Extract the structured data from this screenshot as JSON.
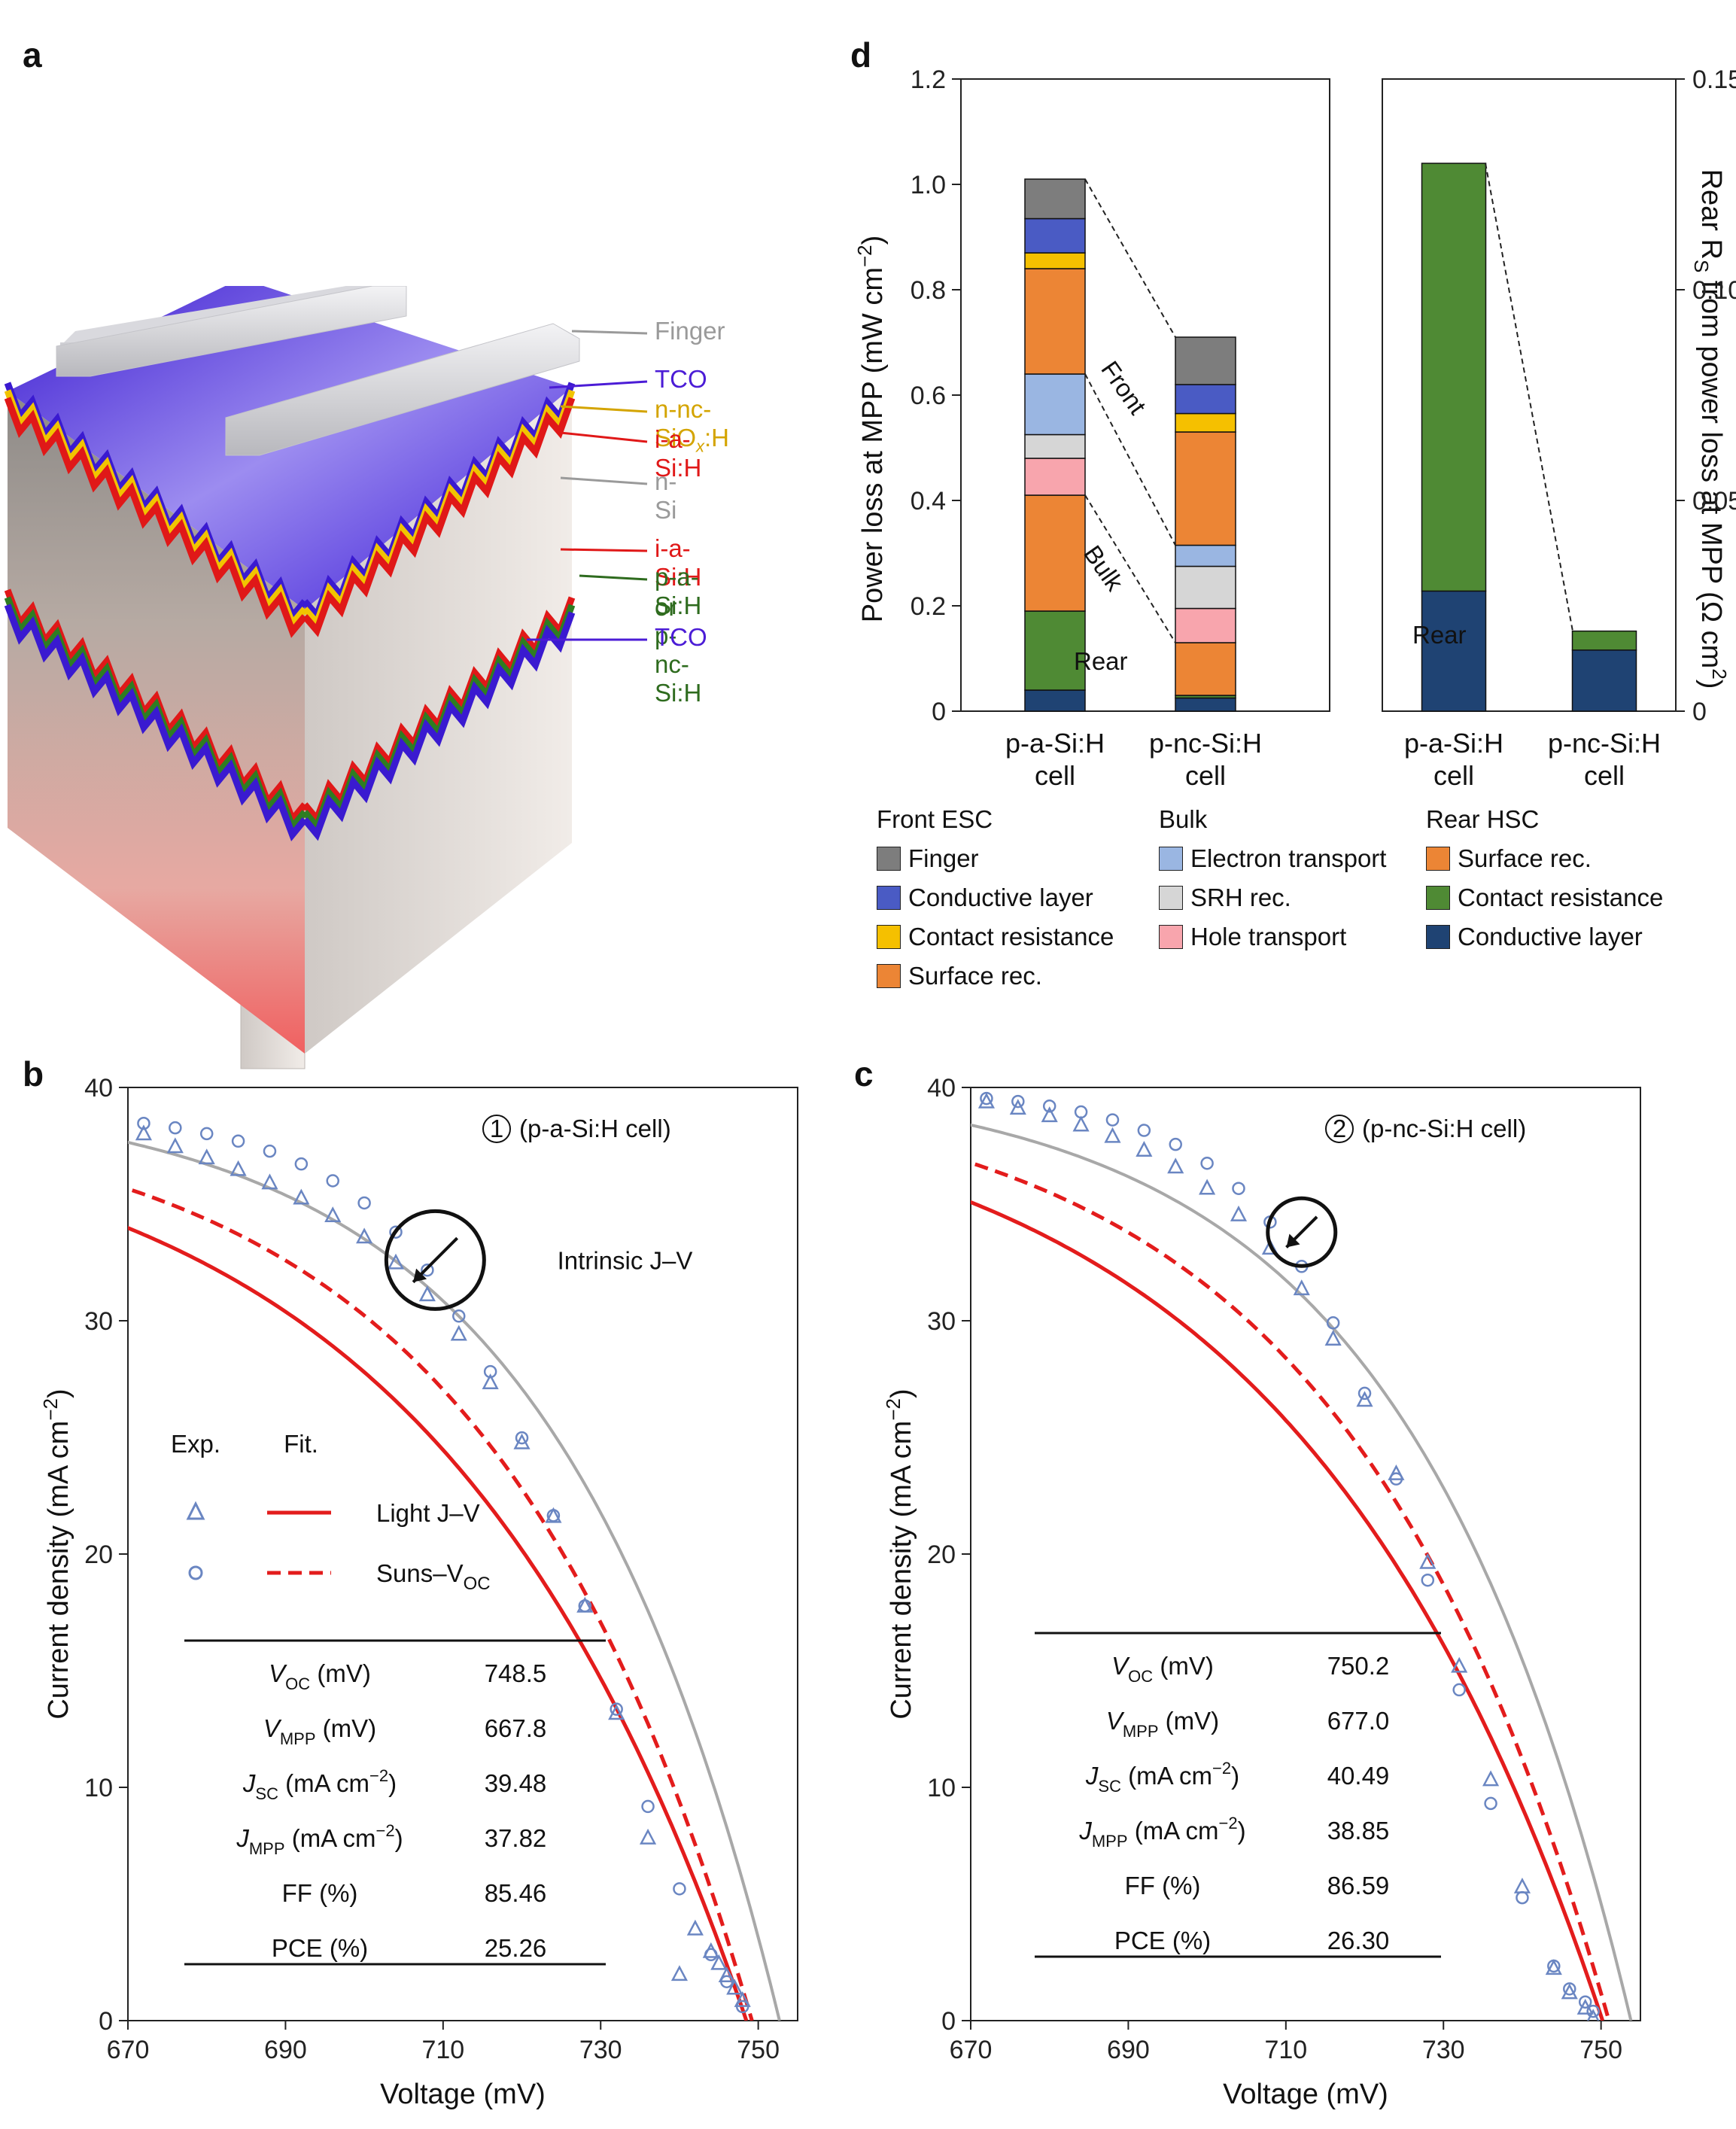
{
  "panels": {
    "a": "a",
    "b": "b",
    "c": "c",
    "d": "d"
  },
  "panel_a": {
    "layers": [
      {
        "label": "Finger",
        "color": "#9a9a9a"
      },
      {
        "label": "TCO",
        "color": "#4b1cd6"
      },
      {
        "label": "n-nc-SiO",
        "sub": "x",
        "label_end": ":H",
        "color": "#d4a400"
      },
      {
        "label": "i-a-Si:H",
        "color": "#e01818"
      },
      {
        "label": "n-Si",
        "color": "#9a9a9a"
      },
      {
        "label": "i-a-Si:H",
        "color": "#e01818"
      },
      {
        "label": "p-a-Si:H",
        "color": "#2e6b1e"
      },
      {
        "label": "or p-nc-Si:H",
        "color": "#2e6b1e"
      },
      {
        "label": "TCO",
        "color": "#4b1cd6"
      }
    ]
  },
  "panel_d": {
    "left_axis_label": "Power loss at MPP (mW cm",
    "left_axis_sup": "−2",
    "left_axis_end": ")",
    "right_axis_label_pre": "Rear R",
    "right_axis_label_sub": "S",
    "right_axis_label_post": " from power loss at MPP (Ω cm",
    "right_axis_sup": "2",
    "right_axis_end": ")",
    "left_ticks": [
      "0",
      "0.2",
      "0.4",
      "0.6",
      "0.8",
      "1.0",
      "1.2"
    ],
    "right_ticks": [
      "0",
      "0.05",
      "0.10",
      "0.15"
    ],
    "annotations": {
      "front": "Front",
      "bulk": "Bulk",
      "rear_left": "Rear",
      "rear_right": "Rear"
    },
    "categories_left": [
      [
        "p-a-Si:H",
        "cell"
      ],
      [
        "p-nc-Si:H",
        "cell"
      ]
    ],
    "categories_right": [
      [
        "p-a-Si:H",
        "cell"
      ],
      [
        "p-nc-Si:H",
        "cell"
      ]
    ],
    "legend": {
      "groups": [
        {
          "title": "Front ESC",
          "items": [
            {
              "label": "Finger",
              "color": "#7d7d7d"
            },
            {
              "label": "Conductive layer",
              "color": "#4a5bc4"
            },
            {
              "label": "Contact resistance",
              "color": "#f5c000"
            },
            {
              "label": "Surface rec.",
              "color": "#ec8535"
            }
          ]
        },
        {
          "title": "Bulk",
          "items": [
            {
              "label": "Electron transport",
              "color": "#9ab6e2"
            },
            {
              "label": "SRH rec.",
              "color": "#d6d6d6"
            },
            {
              "label": "Hole transport",
              "color": "#f8a5ad"
            }
          ]
        },
        {
          "title": "Rear HSC",
          "items": [
            {
              "label": "Surface rec.",
              "color": "#ec8535"
            },
            {
              "label": "Contact resistance",
              "color": "#4f8a34"
            },
            {
              "label": "Conductive layer",
              "color": "#1f4373"
            }
          ]
        }
      ]
    }
  },
  "panel_b": {
    "circle_label": "1",
    "title": "(p-a-Si:H cell)",
    "intrinsic_label": "Intrinsic J–V",
    "legend": {
      "exp": "Exp.",
      "fit": "Fit.",
      "light": "Light J–V",
      "suns_pre": "Suns–V",
      "suns_sub": "OC"
    },
    "table": [
      {
        "param": "V",
        "sub": "OC",
        "unit": " (mV)",
        "value": "748.5"
      },
      {
        "param": "V",
        "sub": "MPP",
        "unit": " (mV)",
        "value": "667.8"
      },
      {
        "param": "J",
        "sub": "SC",
        "unit": " (mA cm",
        "sup": "−2",
        "unit_end": ")",
        "value": "39.48"
      },
      {
        "param": "J",
        "sub": "MPP",
        "unit": " (mA cm",
        "sup": "−2",
        "unit_end": ")",
        "value": "37.82"
      },
      {
        "param": "FF (%)",
        "value": "85.46"
      },
      {
        "param": "PCE (%)",
        "value": "25.26"
      }
    ]
  },
  "panel_c": {
    "circle_label": "2",
    "title": "(p-nc-Si:H cell)",
    "table": [
      {
        "param": "V",
        "sub": "OC",
        "unit": " (mV)",
        "value": "750.2"
      },
      {
        "param": "V",
        "sub": "MPP",
        "unit": " (mV)",
        "value": "677.0"
      },
      {
        "param": "J",
        "sub": "SC",
        "unit": " (mA cm",
        "sup": "−2",
        "unit_end": ")",
        "value": "40.49"
      },
      {
        "param": "J",
        "sub": "MPP",
        "unit": " (mA cm",
        "sup": "−2",
        "unit_end": ")",
        "value": "38.85"
      },
      {
        "param": "FF (%)",
        "value": "86.59"
      },
      {
        "param": "PCE (%)",
        "value": "26.30"
      }
    ]
  },
  "jv_axes": {
    "xlabel": "Voltage (mV)",
    "ylabel": "Current density (mA cm",
    "ylabel_sup": "−2",
    "ylabel_end": ")",
    "xticks": [
      "670",
      "690",
      "710",
      "730",
      "750"
    ],
    "yticks": [
      "0",
      "10",
      "20",
      "30",
      "40"
    ]
  },
  "chart_data": [
    {
      "id": "d",
      "type": "bar",
      "stacked": true,
      "title": "",
      "ylabel": "Power loss at MPP (mW cm−2)",
      "ylim": [
        0,
        1.2
      ],
      "y2label": "Rear RS from power loss at MPP (Ω cm2)",
      "y2lim": [
        0,
        0.15
      ],
      "subplots": [
        {
          "categories": [
            "p-a-Si:H cell",
            "p-nc-Si:H cell"
          ],
          "axis": "left",
          "series": [
            {
              "name": "Rear Conductive layer",
              "color": "#1f4373",
              "values": [
                0.04,
                0.025
              ]
            },
            {
              "name": "Rear Contact resistance",
              "color": "#4f8a34",
              "values": [
                0.15,
                0.005
              ]
            },
            {
              "name": "Rear Surface rec.",
              "color": "#ec8535",
              "values": [
                0.22,
                0.1
              ]
            },
            {
              "name": "Hole transport",
              "color": "#f8a5ad",
              "values": [
                0.07,
                0.065
              ]
            },
            {
              "name": "SRH rec.",
              "color": "#d6d6d6",
              "values": [
                0.045,
                0.08
              ]
            },
            {
              "name": "Electron transport",
              "color": "#9ab6e2",
              "values": [
                0.115,
                0.04
              ]
            },
            {
              "name": "Front Surface rec.",
              "color": "#ec8535",
              "values": [
                0.2,
                0.215
              ]
            },
            {
              "name": "Front Contact resistance",
              "color": "#f5c000",
              "values": [
                0.03,
                0.035
              ]
            },
            {
              "name": "Front Conductive layer",
              "color": "#4a5bc4",
              "values": [
                0.065,
                0.055
              ]
            },
            {
              "name": "Finger",
              "color": "#7d7d7d",
              "values": [
                0.075,
                0.09
              ]
            }
          ]
        },
        {
          "categories": [
            "p-a-Si:H cell",
            "p-nc-Si:H cell"
          ],
          "axis": "right",
          "series": [
            {
              "name": "Rear Conductive layer",
              "color": "#1f4373",
              "values": [
                0.0285,
                0.0145
              ]
            },
            {
              "name": "Rear Contact resistance",
              "color": "#4f8a34",
              "values": [
                0.1015,
                0.0045
              ]
            }
          ]
        }
      ]
    },
    {
      "id": "b",
      "type": "line",
      "title": "(p-a-Si:H cell)",
      "xlabel": "Voltage (mV)",
      "ylabel": "Current density (mA cm−2)",
      "xlim": [
        670,
        755
      ],
      "ylim": [
        0,
        40
      ],
      "params": {
        "voc": 748.5,
        "jsc": 39.48,
        "intrinsic_voc": 752.7,
        "intrinsic_jsc": 39.9,
        "suns_voc": 749.2,
        "suns_jsc": 39.48
      },
      "series": [
        {
          "name": "Light J–V (Exp.)",
          "marker": "triangle",
          "color": "#6a86c2",
          "x": [
            672,
            676,
            680,
            684,
            688,
            692,
            696,
            700,
            704,
            708,
            712,
            716,
            720,
            724,
            728,
            732,
            736,
            740,
            742,
            744,
            745,
            746,
            747,
            748
          ],
          "y": [
            38.0,
            37.45,
            36.97,
            36.47,
            35.9,
            35.25,
            34.49,
            33.58,
            32.47,
            31.1,
            29.41,
            27.33,
            24.76,
            21.6,
            17.76,
            13.16,
            7.82,
            1.97,
            3.92,
            2.95,
            2.44,
            1.91,
            1.38,
            0.85
          ]
        },
        {
          "name": "Suns–VOC (Exp.)",
          "marker": "circle",
          "color": "#6a86c2",
          "x": [
            672,
            676,
            680,
            684,
            688,
            692,
            696,
            700,
            704,
            708,
            712,
            716,
            720,
            724,
            728,
            732,
            736,
            740,
            744,
            746,
            748
          ],
          "y": [
            38.46,
            38.27,
            38.02,
            37.7,
            37.27,
            36.72,
            36.0,
            35.05,
            33.8,
            32.17,
            30.2,
            27.82,
            24.98,
            21.65,
            17.78,
            13.35,
            9.18,
            5.65,
            2.83,
            1.67,
            0.6
          ]
        },
        {
          "name": "Light J–V (Fit.)",
          "style": "solid",
          "color": "#e31c1c"
        },
        {
          "name": "Suns–VOC (Fit.)",
          "style": "dashed",
          "color": "#e31c1c"
        },
        {
          "name": "Intrinsic J–V",
          "style": "solid",
          "color": "#a8a8a8"
        }
      ]
    },
    {
      "id": "c",
      "type": "line",
      "title": "(p-nc-Si:H cell)",
      "xlabel": "Voltage (mV)",
      "ylabel": "Current density (mA cm−2)",
      "xlim": [
        670,
        755
      ],
      "ylim": [
        0,
        40
      ],
      "params": {
        "voc": 750.2,
        "jsc": 40.49,
        "intrinsic_voc": 753.8,
        "intrinsic_jsc": 40.6,
        "suns_voc": 751.0,
        "suns_jsc": 40.49
      },
      "series": [
        {
          "name": "Light J–V (Exp.)",
          "marker": "triangle",
          "color": "#6a86c2",
          "x": [
            672,
            676,
            680,
            684,
            688,
            692,
            696,
            700,
            704,
            708,
            712,
            716,
            720,
            724,
            728,
            732,
            736,
            740,
            744,
            746,
            748,
            749
          ],
          "y": [
            39.37,
            39.1,
            38.78,
            38.38,
            37.89,
            37.3,
            36.58,
            35.67,
            34.53,
            33.1,
            31.36,
            29.2,
            26.58,
            23.43,
            19.63,
            15.18,
            10.32,
            5.72,
            2.23,
            1.19,
            0.53,
            0.1
          ]
        },
        {
          "name": "Suns–VOC (Exp.)",
          "marker": "circle",
          "color": "#6a86c2",
          "x": [
            672,
            676,
            680,
            684,
            688,
            692,
            696,
            700,
            704,
            708,
            712,
            716,
            720,
            724,
            728,
            732,
            736,
            740,
            744,
            746,
            748,
            749
          ],
          "y": [
            39.53,
            39.4,
            39.2,
            38.95,
            38.61,
            38.16,
            37.56,
            36.75,
            35.67,
            34.23,
            32.33,
            29.91,
            26.89,
            23.22,
            18.88,
            14.18,
            9.31,
            5.27,
            2.34,
            1.36,
            0.8,
            0.4
          ]
        },
        {
          "name": "Light J–V (Fit.)",
          "style": "solid",
          "color": "#e31c1c"
        },
        {
          "name": "Suns–VOC (Fit.)",
          "style": "dashed",
          "color": "#e31c1c"
        },
        {
          "name": "Intrinsic J–V",
          "style": "solid",
          "color": "#a8a8a8"
        }
      ]
    }
  ]
}
